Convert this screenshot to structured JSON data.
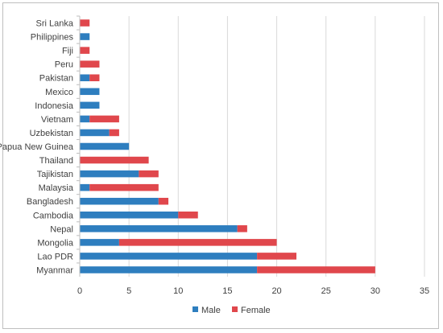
{
  "chart_data": {
    "type": "bar",
    "orientation": "horizontal",
    "stacked": true,
    "categories": [
      "Sri Lanka",
      "Philippines",
      "Fiji",
      "Peru",
      "Pakistan",
      "Mexico",
      "Indonesia",
      "Vietnam",
      "Uzbekistan",
      "Papua New Guinea",
      "Thailand",
      "Tajikistan",
      "Malaysia",
      "Bangladesh",
      "Cambodia",
      "Nepal",
      "Mongolia",
      "Lao PDR",
      "Myanmar"
    ],
    "series": [
      {
        "name": "Male",
        "color": "#2e7ebf",
        "values": [
          0,
          1,
          0,
          0,
          1,
          2,
          2,
          1,
          3,
          5,
          0,
          6,
          1,
          8,
          10,
          16,
          4,
          18,
          18
        ]
      },
      {
        "name": "Female",
        "color": "#e0474c",
        "values": [
          1,
          0,
          1,
          2,
          1,
          0,
          0,
          3,
          1,
          0,
          7,
          2,
          7,
          1,
          2,
          1,
          16,
          4,
          12
        ]
      }
    ],
    "xlim": [
      0,
      35
    ],
    "xticks": [
      "0",
      "5",
      "10",
      "15",
      "20",
      "25",
      "30",
      "35"
    ],
    "grid": "vertical",
    "legend": "bottom"
  }
}
